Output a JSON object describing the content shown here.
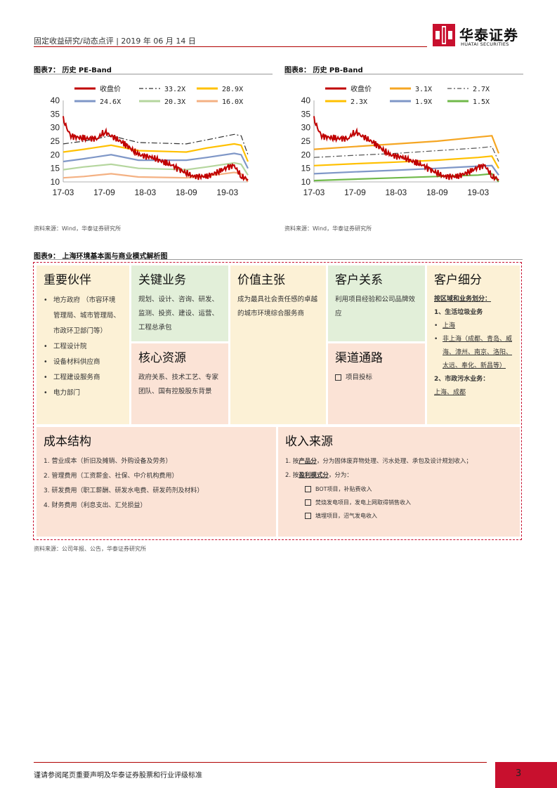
{
  "header": {
    "text": "固定收益研究/动态点评 | 2019 年 06 月 14 日"
  },
  "logo": {
    "cn": "华泰证券",
    "en": "HUATAI SECURITIES"
  },
  "colors": {
    "brand_red": "#c8102e",
    "close_price": "#c00000"
  },
  "fig7": {
    "title": "图表7：  历史 PE-Band",
    "source": "资料来源：Wind，华泰证券研究所"
  },
  "fig8": {
    "title": "图表8：  历史 PB-Band",
    "source": "资料来源：Wind，华泰证券研究所"
  },
  "fig9": {
    "title": "图表9：  上海环境基本面与商业模式解析图",
    "source": "资料来源：公司年报、公告，华泰证券研究所"
  },
  "chart_data": [
    {
      "type": "line",
      "y_ticks": [
        "40",
        "35",
        "30",
        "25",
        "20",
        "15",
        "10"
      ],
      "x_ticks": [
        "17-03",
        "17-09",
        "18-03",
        "18-09",
        "19-03"
      ],
      "ylim": [
        10,
        40
      ],
      "x_range": [
        "2017-03",
        "2019-06"
      ],
      "legend_placement": "top",
      "series": [
        {
          "name": "收盘价",
          "color": "#c00000",
          "style": "solid",
          "x": [
            "2017-03",
            "2017-04",
            "2017-06",
            "2017-08",
            "2017-09",
            "2017-10",
            "2017-12",
            "2018-02",
            "2018-04",
            "2018-06",
            "2018-07",
            "2018-08",
            "2018-10",
            "2018-12",
            "2019-02",
            "2019-03",
            "2019-04",
            "2019-05",
            "2019-06"
          ],
          "y": [
            33,
            27,
            26,
            26,
            28.5,
            27,
            24,
            20,
            19,
            17,
            16,
            14.5,
            12,
            12,
            14,
            15.5,
            16,
            12,
            11
          ]
        },
        {
          "name": "33.2X",
          "color": "#333333",
          "style": "dashdot",
          "x": [
            "2017-03",
            "2017-06",
            "2017-10",
            "2018-02",
            "2018-09",
            "2018-12",
            "2019-04",
            "2019-05",
            "2019-06"
          ],
          "y": [
            24,
            25,
            27,
            24.5,
            24,
            25.5,
            27.5,
            27,
            20
          ]
        },
        {
          "name": "28.9X",
          "color": "#ffc000",
          "style": "solid",
          "x": [
            "2017-03",
            "2017-06",
            "2017-10",
            "2018-02",
            "2018-09",
            "2018-12",
            "2019-04",
            "2019-05",
            "2019-06"
          ],
          "y": [
            21,
            22,
            23.5,
            21.5,
            21,
            22.5,
            24,
            23.5,
            17.5
          ]
        },
        {
          "name": "24.6X",
          "color": "#7f97c7",
          "style": "solid",
          "x": [
            "2017-03",
            "2017-06",
            "2017-10",
            "2018-02",
            "2018-09",
            "2018-12",
            "2019-04",
            "2019-05",
            "2019-06"
          ],
          "y": [
            17.5,
            18.5,
            20,
            18,
            18,
            19,
            20.5,
            20,
            15
          ]
        },
        {
          "name": "20.3X",
          "color": "#b5d69e",
          "style": "solid",
          "x": [
            "2017-03",
            "2017-06",
            "2017-10",
            "2018-02",
            "2018-09",
            "2018-12",
            "2019-04",
            "2019-05",
            "2019-06"
          ],
          "y": [
            14.5,
            15.5,
            16.5,
            15,
            14.5,
            15.5,
            17,
            16.5,
            12.5
          ]
        },
        {
          "name": "16.0X",
          "color": "#f4b183",
          "style": "solid",
          "x": [
            "2017-03",
            "2017-06",
            "2017-10",
            "2018-02",
            "2018-09",
            "2018-12",
            "2019-04",
            "2019-05",
            "2019-06"
          ],
          "y": [
            11.5,
            12,
            13,
            11.8,
            11.5,
            12.2,
            13.5,
            13,
            10
          ]
        }
      ]
    },
    {
      "type": "line",
      "y_ticks": [
        "40",
        "35",
        "30",
        "25",
        "20",
        "15",
        "10"
      ],
      "x_ticks": [
        "17-03",
        "17-09",
        "18-03",
        "18-09",
        "19-03"
      ],
      "ylim": [
        10,
        40
      ],
      "x_range": [
        "2017-03",
        "2019-06"
      ],
      "legend_placement": "top",
      "series": [
        {
          "name": "收盘价",
          "color": "#c00000",
          "style": "solid",
          "x": [
            "2017-03",
            "2017-04",
            "2017-06",
            "2017-08",
            "2017-09",
            "2017-10",
            "2017-12",
            "2018-02",
            "2018-04",
            "2018-06",
            "2018-07",
            "2018-08",
            "2018-10",
            "2018-12",
            "2019-02",
            "2019-03",
            "2019-04",
            "2019-05",
            "2019-06"
          ],
          "y": [
            33,
            27,
            26,
            26,
            28.5,
            27,
            24,
            20,
            19,
            17,
            16,
            14.5,
            12,
            12,
            14,
            15.5,
            16,
            12,
            11
          ]
        },
        {
          "name": "3.1X",
          "color": "#f5a623",
          "style": "solid",
          "x": [
            "2017-03",
            "2017-09",
            "2018-03",
            "2018-09",
            "2019-03",
            "2019-05",
            "2019-06"
          ],
          "y": [
            22,
            23,
            24,
            25,
            26.5,
            27,
            20.5
          ]
        },
        {
          "name": "2.7X",
          "color": "#555555",
          "style": "dashdot",
          "x": [
            "2017-03",
            "2017-09",
            "2018-03",
            "2018-09",
            "2019-03",
            "2019-05",
            "2019-06"
          ],
          "y": [
            19,
            19.8,
            20.5,
            21.5,
            22.5,
            23,
            17.5
          ]
        },
        {
          "name": "2.3X",
          "color": "#ffc000",
          "style": "solid",
          "x": [
            "2017-03",
            "2017-09",
            "2018-03",
            "2018-09",
            "2019-03",
            "2019-05",
            "2019-06"
          ],
          "y": [
            16,
            16.7,
            17.3,
            18,
            19,
            19.5,
            15
          ]
        },
        {
          "name": "1.9X",
          "color": "#7f97c7",
          "style": "solid",
          "x": [
            "2017-03",
            "2017-09",
            "2018-03",
            "2018-09",
            "2019-03",
            "2019-05",
            "2019-06"
          ],
          "y": [
            13,
            13.7,
            14.3,
            15,
            15.8,
            16,
            12.5
          ]
        },
        {
          "name": "1.5X",
          "color": "#70b94a",
          "style": "solid",
          "x": [
            "2017-03",
            "2017-09",
            "2018-03",
            "2018-09",
            "2019-03",
            "2019-05",
            "2019-06"
          ],
          "y": [
            10.5,
            11,
            11.5,
            12,
            12.5,
            13,
            10
          ]
        }
      ]
    }
  ],
  "bmc": {
    "partners": {
      "title": "重要伙伴",
      "items": [
        "地方政府 （市容环境管理局、城市管理局、市政环卫部门等）",
        "工程设计院",
        "设备材料供应商",
        "工程建设服务商",
        "电力部门"
      ]
    },
    "activities": {
      "title": "关键业务",
      "text": "规划、设计、咨询、研发、监测、投资、建设、运营、工程总承包"
    },
    "resources": {
      "title": "核心资源",
      "text": "政府关系、技术工艺、专家团队、国有控股股东背景"
    },
    "value": {
      "title": "价值主张",
      "text": "成为最具社会责任感的卓越的城市环境综合服务商"
    },
    "relations": {
      "title": "客户关系",
      "text": "利用项目经验和公司品牌效应"
    },
    "channels": {
      "title": "渠道通路",
      "item": "项目投标"
    },
    "segments": {
      "title": "客户细分",
      "intro": "按区域和业务划分：",
      "g1": "1、生活垃圾业务",
      "g1_a": "上海",
      "g1_b": "非上海（成都、青岛、威海、漳州、南京、洛阳、太远、奉化、新昌等）",
      "g2": "2、市政污水业务：",
      "g2_a": "上海、成都"
    },
    "cost": {
      "title": "成本结构",
      "items": [
        "1.  营业成本（折旧及摊销、外购设备及劳务）",
        "2.  管理费用（工资薪金、社保、中介机构费用）",
        "3.  研发费用（职工薪酬、研发水电费、研发药剂及材料）",
        "4.  财务费用（利息支出、汇兑损益）"
      ]
    },
    "revenue": {
      "title": "收入来源",
      "l1_pre": "1.  按",
      "l1_key": "产品分",
      "l1_post": "，分为固体废弃物处理、污水处理、承包及设计规划收入；",
      "l2_pre": "2.  按",
      "l2_key": "盈利模式分",
      "l2_post": "，分为：",
      "subs": [
        "BOT项目，补贴费收入",
        "焚烧发电项目，发电上网取得销售收入",
        "填埋项目，沼气发电收入"
      ]
    }
  },
  "footer": {
    "text": "谨请参阅尾页重要声明及华泰证券股票和行业评级标准",
    "page": "3"
  }
}
